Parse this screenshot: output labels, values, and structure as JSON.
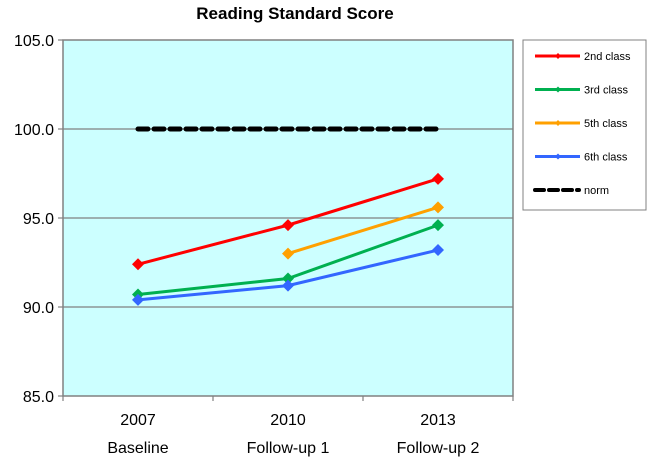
{
  "chart_data": {
    "type": "line",
    "title": "Reading Standard Score",
    "xlabel": "",
    "ylabel": "",
    "categories": [
      "2007",
      "2010",
      "2013"
    ],
    "category_sublabels": [
      "Baseline",
      "Follow-up 1",
      "Follow-up 2"
    ],
    "ylim": [
      85.0,
      105.0
    ],
    "yticks": [
      "85.0",
      "90.0",
      "95.0",
      "100.0",
      "105.0"
    ],
    "grid": true,
    "legend_position": "right",
    "plot_background": "#ccffff",
    "series": [
      {
        "name": "2nd class",
        "color": "#ff0000",
        "values": [
          92.4,
          94.6,
          97.2
        ]
      },
      {
        "name": "3rd class",
        "color": "#00b050",
        "values": [
          90.7,
          91.6,
          94.6
        ]
      },
      {
        "name": "5th class",
        "color": "#ffa000",
        "values": [
          null,
          93.0,
          95.6
        ]
      },
      {
        "name": "6th class",
        "color": "#3366ff",
        "values": [
          90.4,
          91.2,
          93.2
        ]
      },
      {
        "name": "norm",
        "color": "#000000",
        "style": "dashed",
        "values": [
          100.0,
          100.0,
          100.0
        ]
      }
    ]
  }
}
